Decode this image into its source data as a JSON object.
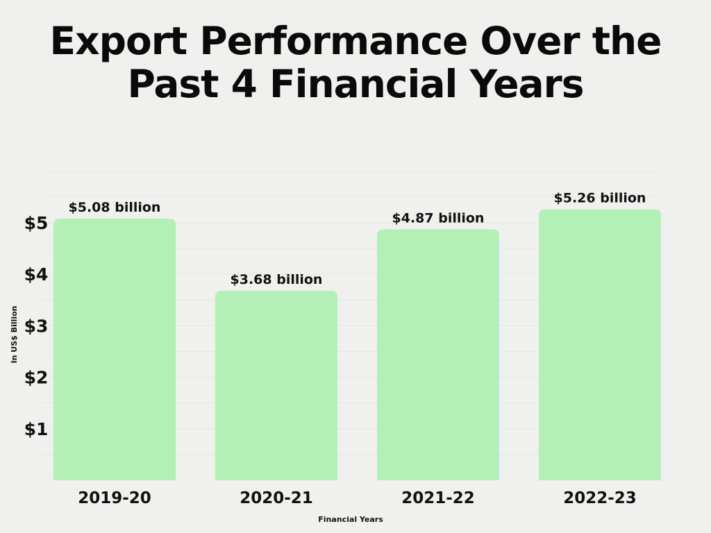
{
  "chart_data": {
    "type": "bar",
    "title": [
      "Export Performance Over the",
      "Past 4 Financial Years"
    ],
    "categories": [
      "2019-20",
      "2020-21",
      "2021-22",
      "2022-23"
    ],
    "values": [
      5.08,
      3.68,
      4.87,
      5.26
    ],
    "data_labels": [
      "$5.08 billion",
      "$3.68 billion",
      "$4.87 billion",
      "$5.26 billion"
    ],
    "xlabel": "Financial Years",
    "ylabel": "In US$ Billion",
    "yticks": [
      1,
      2,
      3,
      4,
      5
    ],
    "ytick_labels": [
      "$1",
      "$2",
      "$3",
      "$4",
      "$5"
    ],
    "ylim": [
      0,
      6
    ],
    "grid": true,
    "legend": "none",
    "colors": {
      "bar": "#b3f0b6",
      "grid": "#dfe9e3",
      "text": "#111111",
      "background": "#f1f1f0"
    }
  }
}
